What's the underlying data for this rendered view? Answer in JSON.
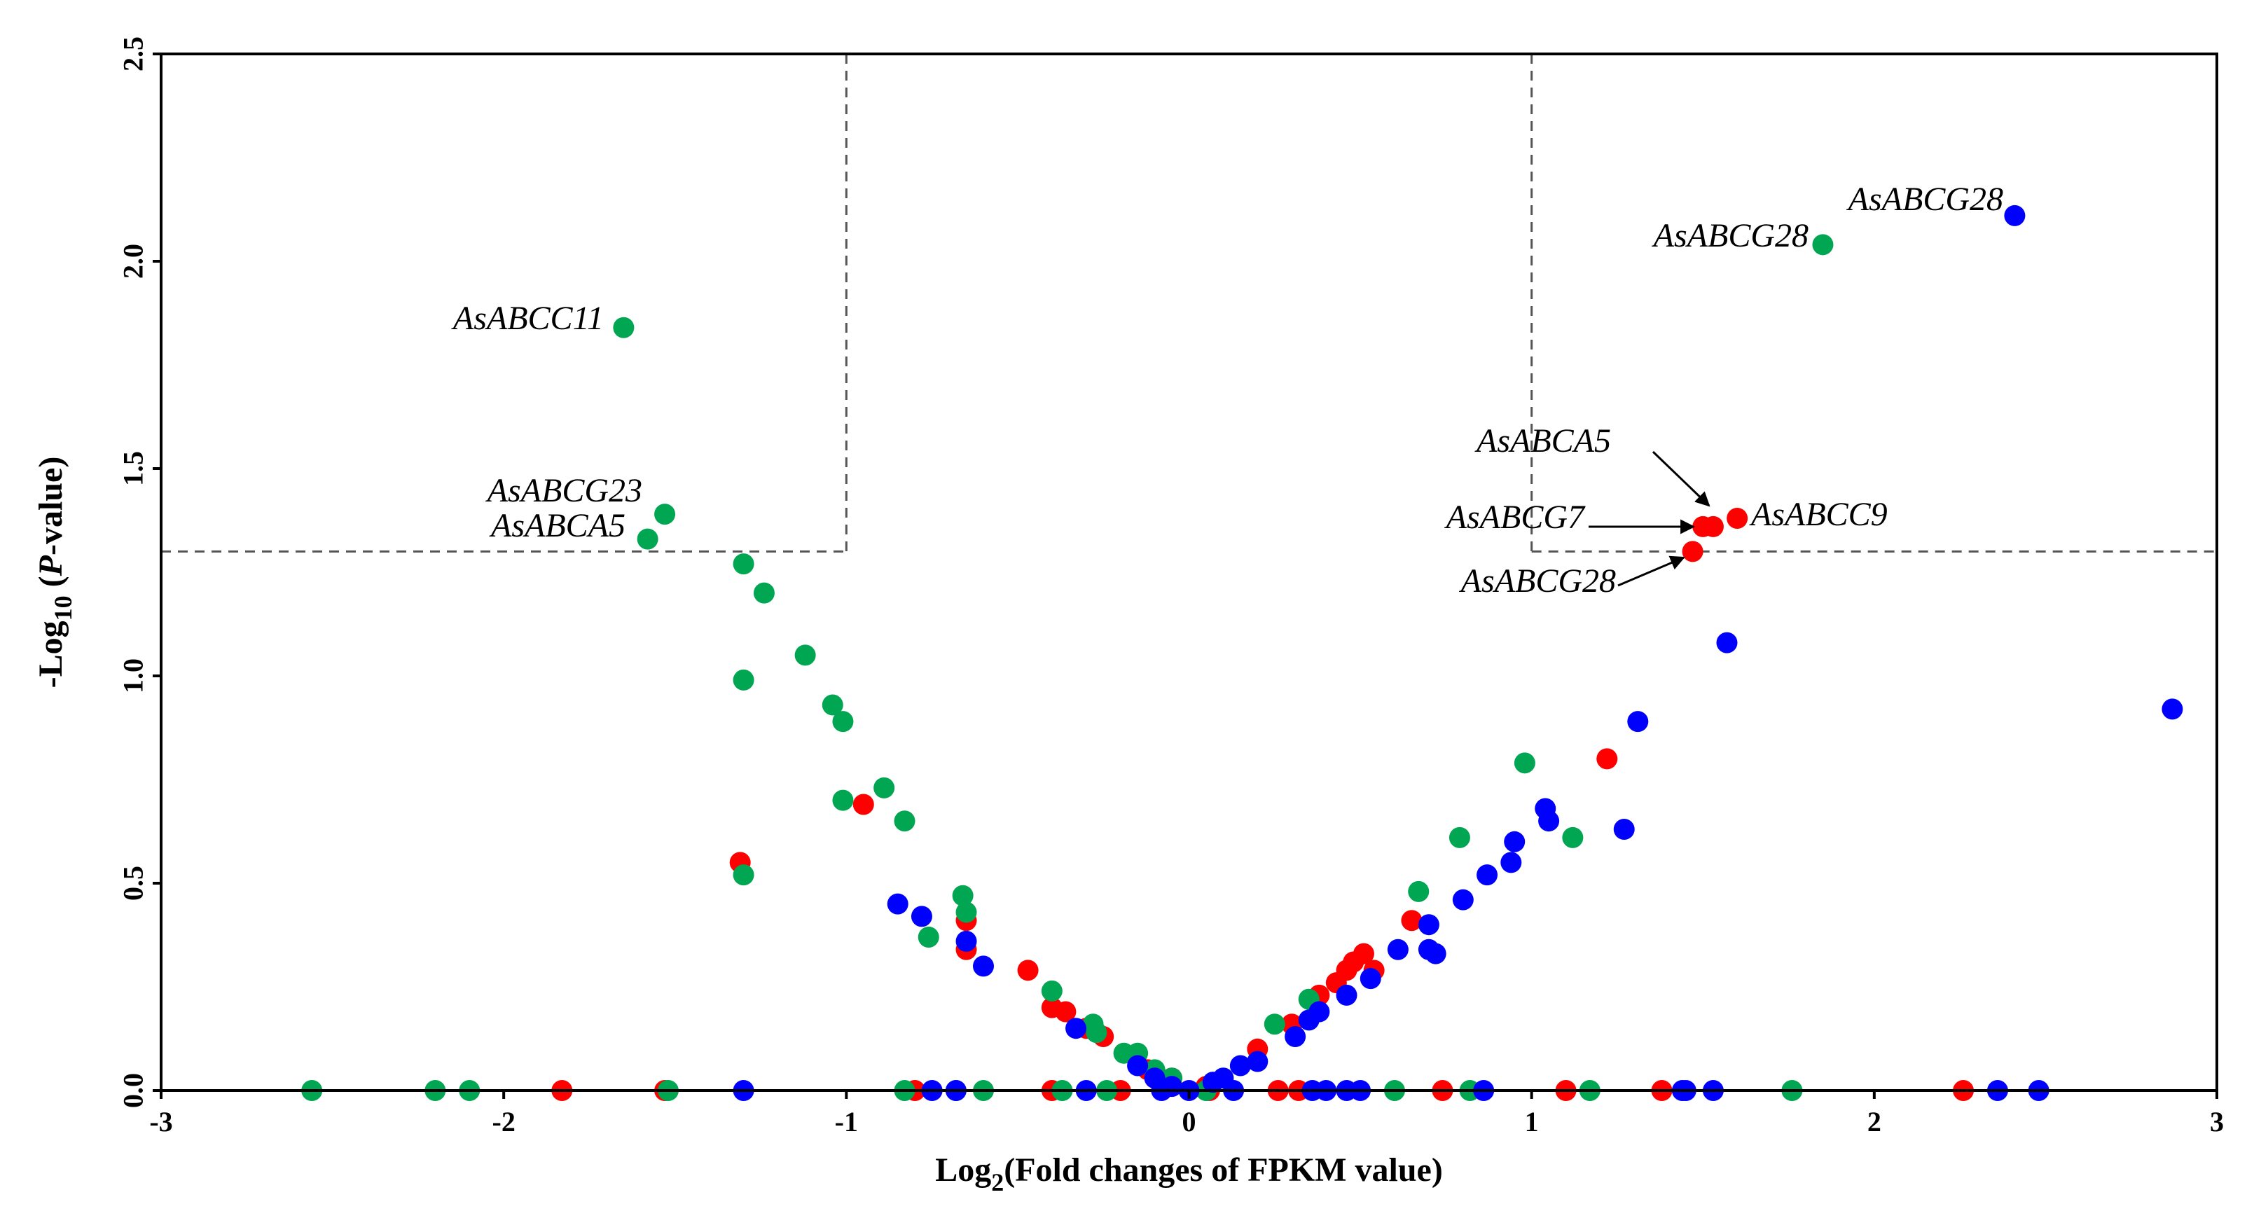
{
  "chart_data": {
    "type": "scatter",
    "title": "",
    "xlabel": "Log2(Fold changes of FPKM value)",
    "xlabel_parts": {
      "prefix": "Log",
      "sub": "2",
      "suffix": "(Fold changes of FPKM value)"
    },
    "ylabel": "-Log10 (P-value)",
    "ylabel_parts": {
      "prefix": "-Log",
      "sub": "10",
      "mid1": " (",
      "italic": "P",
      "suffix": "-value)"
    },
    "xlim": [
      -3,
      3
    ],
    "ylim": [
      0,
      2.5
    ],
    "xticks": [
      -3,
      -2,
      -1,
      0,
      1,
      2,
      3
    ],
    "xtick_labels": [
      "-3",
      "-2",
      "-1",
      "0",
      "1",
      "2",
      "3"
    ],
    "yticks": [
      0,
      0.5,
      1.0,
      1.5,
      2.0,
      2.5
    ],
    "ytick_labels": [
      "0.0",
      "0.5",
      "1.0",
      "1.5",
      "2.0",
      "2.5"
    ],
    "thresholds": {
      "x": [
        -1,
        1
      ],
      "y": 1.3
    },
    "colors": {
      "red": "#ff0000",
      "green": "#00a651",
      "blue": "#0000ff",
      "axis": "#000000",
      "threshold": "#555555"
    },
    "series": [
      {
        "name": "red",
        "color": "#ff0000",
        "points": [
          [
            -1.83,
            0
          ],
          [
            -1.53,
            0
          ],
          [
            -1.31,
            0.55
          ],
          [
            -0.95,
            0.69
          ],
          [
            -0.65,
            0.34
          ],
          [
            -0.65,
            0.41
          ],
          [
            -0.47,
            0.29
          ],
          [
            -0.4,
            0.2
          ],
          [
            -0.36,
            0.19
          ],
          [
            -0.3,
            0.15
          ],
          [
            -0.25,
            0.13
          ],
          [
            -0.12,
            0.05
          ],
          [
            -0.05,
            0.03
          ],
          [
            0.05,
            0.01
          ],
          [
            0.2,
            0.1
          ],
          [
            0.3,
            0.16
          ],
          [
            0.38,
            0.23
          ],
          [
            0.43,
            0.26
          ],
          [
            0.46,
            0.29
          ],
          [
            0.48,
            0.31
          ],
          [
            0.51,
            0.33
          ],
          [
            0.54,
            0.29
          ],
          [
            0.65,
            0.41
          ],
          [
            1.22,
            0.8
          ],
          [
            1.47,
            1.3
          ],
          [
            1.5,
            1.36
          ],
          [
            1.53,
            1.36
          ],
          [
            1.6,
            1.38
          ],
          [
            -0.8,
            0
          ],
          [
            -0.4,
            0
          ],
          [
            -0.2,
            0
          ],
          [
            0.06,
            0
          ],
          [
            0.26,
            0
          ],
          [
            0.32,
            0
          ],
          [
            0.74,
            0
          ],
          [
            1.1,
            0
          ],
          [
            1.38,
            0
          ],
          [
            2.26,
            0
          ]
        ]
      },
      {
        "name": "green",
        "color": "#00a651",
        "points": [
          [
            -1.65,
            1.84
          ],
          [
            -1.53,
            1.39
          ],
          [
            -1.58,
            1.33
          ],
          [
            -1.3,
            1.27
          ],
          [
            -1.24,
            1.2
          ],
          [
            -1.3,
            0.99
          ],
          [
            -1.12,
            1.05
          ],
          [
            -1.04,
            0.93
          ],
          [
            -1.01,
            0.89
          ],
          [
            -1.01,
            0.7
          ],
          [
            -0.89,
            0.73
          ],
          [
            -0.83,
            0.65
          ],
          [
            -1.3,
            0.52
          ],
          [
            -0.66,
            0.47
          ],
          [
            -0.65,
            0.43
          ],
          [
            -0.76,
            0.37
          ],
          [
            -0.4,
            0.24
          ],
          [
            -0.28,
            0.16
          ],
          [
            -0.27,
            0.14
          ],
          [
            -0.19,
            0.09
          ],
          [
            -0.15,
            0.09
          ],
          [
            -0.1,
            0.05
          ],
          [
            -0.05,
            0.03
          ],
          [
            0.25,
            0.16
          ],
          [
            0.35,
            0.22
          ],
          [
            0.67,
            0.48
          ],
          [
            0.79,
            0.61
          ],
          [
            0.98,
            0.79
          ],
          [
            1.12,
            0.61
          ],
          [
            1.85,
            2.04
          ],
          [
            -2.56,
            0
          ],
          [
            -2.2,
            0
          ],
          [
            -2.1,
            0
          ],
          [
            -1.52,
            0
          ],
          [
            -0.83,
            0
          ],
          [
            -0.68,
            0
          ],
          [
            -0.6,
            0
          ],
          [
            -0.37,
            0
          ],
          [
            -0.24,
            0
          ],
          [
            0.05,
            0
          ],
          [
            0.6,
            0
          ],
          [
            0.82,
            0
          ],
          [
            1.17,
            0
          ],
          [
            1.76,
            0
          ]
        ]
      },
      {
        "name": "blue",
        "color": "#0000ff",
        "points": [
          [
            2.41,
            2.11
          ],
          [
            1.57,
            1.08
          ],
          [
            2.87,
            0.92
          ],
          [
            1.31,
            0.89
          ],
          [
            1.04,
            0.68
          ],
          [
            1.05,
            0.65
          ],
          [
            0.95,
            0.6
          ],
          [
            1.27,
            0.63
          ],
          [
            0.94,
            0.55
          ],
          [
            0.87,
            0.52
          ],
          [
            0.8,
            0.46
          ],
          [
            0.7,
            0.4
          ],
          [
            0.7,
            0.34
          ],
          [
            0.72,
            0.33
          ],
          [
            0.61,
            0.34
          ],
          [
            0.53,
            0.27
          ],
          [
            0.46,
            0.23
          ],
          [
            0.38,
            0.19
          ],
          [
            0.35,
            0.17
          ],
          [
            0.31,
            0.13
          ],
          [
            0.2,
            0.07
          ],
          [
            0.15,
            0.06
          ],
          [
            0.1,
            0.03
          ],
          [
            0.07,
            0.02
          ],
          [
            -0.85,
            0.45
          ],
          [
            -0.78,
            0.42
          ],
          [
            -0.65,
            0.36
          ],
          [
            -0.6,
            0.3
          ],
          [
            -0.33,
            0.15
          ],
          [
            -0.15,
            0.06
          ],
          [
            -0.1,
            0.03
          ],
          [
            -0.05,
            0.01
          ],
          [
            -1.3,
            0
          ],
          [
            -0.75,
            0
          ],
          [
            -0.68,
            0
          ],
          [
            -0.3,
            0
          ],
          [
            -0.08,
            0
          ],
          [
            0.0,
            0
          ],
          [
            0.13,
            0
          ],
          [
            0.36,
            0
          ],
          [
            0.4,
            0
          ],
          [
            0.46,
            0
          ],
          [
            0.5,
            0
          ],
          [
            0.86,
            0
          ],
          [
            1.44,
            0
          ],
          [
            1.45,
            0
          ],
          [
            1.53,
            0
          ],
          [
            2.36,
            0
          ],
          [
            2.48,
            0
          ]
        ]
      }
    ],
    "annotations": [
      {
        "text": "AsABCC11",
        "x": -1.65,
        "y": 1.84
      },
      {
        "text": "AsABCG23",
        "x": -1.53,
        "y": 1.39
      },
      {
        "text": "AsABCA5",
        "x": -1.58,
        "y": 1.33
      },
      {
        "text": "AsABCG28",
        "x": 2.41,
        "y": 2.11
      },
      {
        "text": "AsABCG28",
        "x": 1.85,
        "y": 2.04
      },
      {
        "text": "AsABCA5",
        "x": 1.53,
        "y": 1.36
      },
      {
        "text": "AsABCG7",
        "x": 1.5,
        "y": 1.36
      },
      {
        "text": "AsABCC9",
        "x": 1.6,
        "y": 1.38
      },
      {
        "text": "AsABCG28",
        "x": 1.47,
        "y": 1.3
      }
    ]
  }
}
